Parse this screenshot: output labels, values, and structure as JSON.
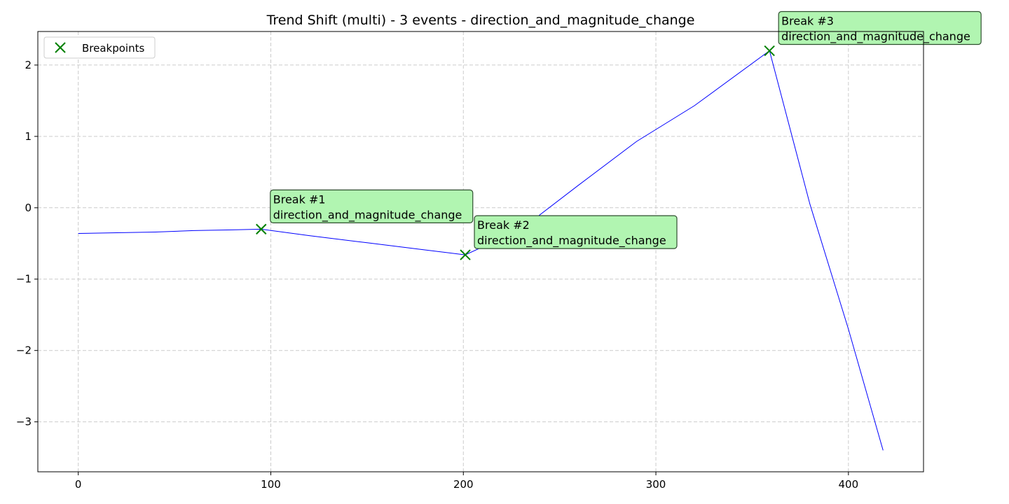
{
  "chart_data": {
    "type": "line",
    "title": "Trend Shift (multi) - 3 events - direction_and_magnitude_change",
    "xlabel": "",
    "ylabel": "",
    "xlim": [
      -21,
      439
    ],
    "ylim": [
      -3.7,
      2.47
    ],
    "x_ticks": [
      0,
      100,
      200,
      300,
      400
    ],
    "y_ticks": [
      -3,
      -2,
      -1,
      0,
      1,
      2
    ],
    "grid": true,
    "legend": {
      "position": "top-left",
      "entries": [
        {
          "label": "Breakpoints",
          "marker": "x",
          "color": "#008000"
        }
      ]
    },
    "series": [
      {
        "color": "#0000ff",
        "x": [
          0,
          20,
          40,
          60,
          80,
          95,
          120,
          150,
          180,
          201,
          230,
          260,
          290,
          320,
          359,
          380,
          400,
          418
        ],
        "y": [
          -0.36,
          -0.35,
          -0.34,
          -0.32,
          -0.31,
          -0.3,
          -0.39,
          -0.49,
          -0.59,
          -0.66,
          -0.3,
          0.32,
          0.93,
          1.43,
          2.2,
          0.05,
          -1.7,
          -3.4
        ]
      }
    ],
    "breakpoints": [
      {
        "x": 95,
        "y": -0.3,
        "label_line1": "Break #1",
        "label_line2": "direction_and_magnitude_change"
      },
      {
        "x": 201,
        "y": -0.66,
        "label_line1": "Break #2",
        "label_line2": "direction_and_magnitude_change"
      },
      {
        "x": 359,
        "y": 2.2,
        "label_line1": "Break #3",
        "label_line2": "direction_and_magnitude_change"
      }
    ],
    "colors": {
      "line": "#0000ff",
      "marker": "#008000",
      "annotation_fill": "#b1f5b1",
      "annotation_border": "#2f4f2f",
      "grid": "#cccccc"
    }
  }
}
